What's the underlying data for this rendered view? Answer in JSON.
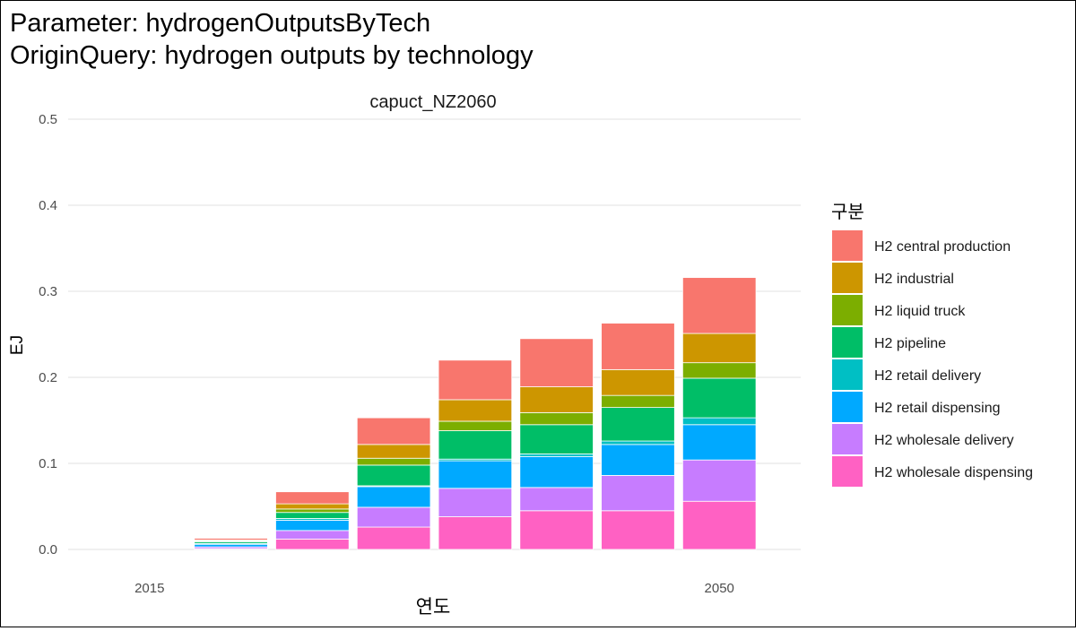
{
  "title_lines": [
    "Parameter: hydrogenOutputsByTech",
    "OriginQuery: hydrogen outputs by technology"
  ],
  "chart_data": {
    "type": "bar",
    "stacked": true,
    "facet_label": "capuct_NZ2060",
    "xlabel": "연도",
    "ylabel": "EJ",
    "xlim": [
      2010,
      2055
    ],
    "ylim": [
      0,
      0.5
    ],
    "x_ticks": [
      2015,
      2050
    ],
    "y_ticks": [
      0.0,
      0.1,
      0.2,
      0.3,
      0.4,
      0.5
    ],
    "y_tick_labels": [
      "0.0",
      "0.1",
      "0.2",
      "0.3",
      "0.4",
      "0.5"
    ],
    "grid": true,
    "legend_title": "구분",
    "legend_position": "right",
    "x": [
      2015,
      2020,
      2025,
      2030,
      2035,
      2040,
      2045,
      2050
    ],
    "series": [
      {
        "name": "H2 wholesale dispensing",
        "color": "#FF61C3",
        "values": [
          0,
          0.001,
          0.012,
          0.026,
          0.038,
          0.045,
          0.045,
          0.056
        ]
      },
      {
        "name": "H2 wholesale delivery",
        "color": "#C77CFF",
        "values": [
          0,
          0.002,
          0.01,
          0.023,
          0.033,
          0.027,
          0.041,
          0.048
        ]
      },
      {
        "name": "H2 retail dispensing",
        "color": "#00A9FF",
        "values": [
          0,
          0.003,
          0.012,
          0.024,
          0.032,
          0.036,
          0.036,
          0.041
        ]
      },
      {
        "name": "H2 retail delivery",
        "color": "#00BFC4",
        "values": [
          0,
          0.001,
          0.002,
          0.001,
          0.002,
          0.003,
          0.004,
          0.008
        ]
      },
      {
        "name": "H2 pipeline",
        "color": "#00BE67",
        "values": [
          0,
          0.002,
          0.007,
          0.024,
          0.033,
          0.034,
          0.039,
          0.046
        ]
      },
      {
        "name": "H2 liquid truck",
        "color": "#7CAE00",
        "values": [
          0,
          0.001,
          0.004,
          0.008,
          0.011,
          0.014,
          0.014,
          0.018
        ]
      },
      {
        "name": "H2 industrial",
        "color": "#CD9600",
        "values": [
          0,
          0.001,
          0.006,
          0.016,
          0.025,
          0.03,
          0.03,
          0.034
        ]
      },
      {
        "name": "H2 central production",
        "color": "#F8766D",
        "values": [
          0,
          0.002,
          0.014,
          0.031,
          0.046,
          0.056,
          0.054,
          0.065
        ]
      }
    ],
    "legend_order": [
      "H2 central production",
      "H2 industrial",
      "H2 liquid truck",
      "H2 pipeline",
      "H2 retail delivery",
      "H2 retail dispensing",
      "H2 wholesale delivery",
      "H2 wholesale dispensing"
    ]
  }
}
